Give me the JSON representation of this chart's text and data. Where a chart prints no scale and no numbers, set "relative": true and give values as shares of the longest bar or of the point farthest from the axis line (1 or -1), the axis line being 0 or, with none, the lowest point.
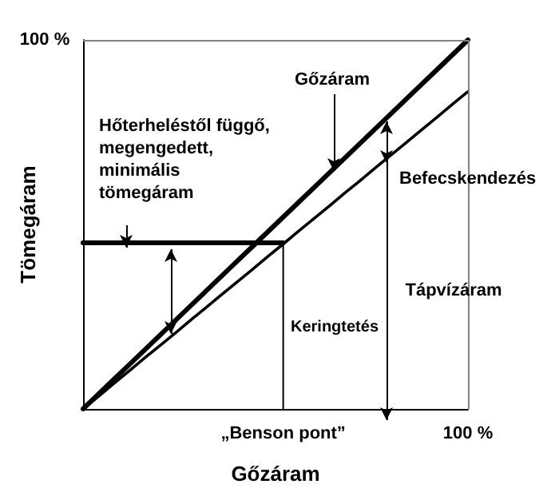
{
  "chart_data": {
    "type": "line",
    "xlabel": "Gőzáram",
    "ylabel": "Tömegáram",
    "relative": true,
    "marker": "none",
    "line_style": "solid",
    "categories": [
      null,
      null,
      null,
      null,
      null,
      null,
      null,
      null,
      null,
      null,
      null,
      null,
      null,
      "„Benson pont”",
      null,
      null,
      null,
      null,
      null,
      null,
      null,
      null,
      null,
      null,
      null,
      "100 %"
    ],
    "series": [
      {
        "color": "#000000",
        "values": [
          0,
          0.04,
          0.08,
          0.12,
          0.16,
          0.2,
          0.24,
          0.28,
          0.32,
          0.36,
          0.4,
          0.44,
          0.48,
          0.52,
          0.56,
          0.6,
          0.64,
          0.68,
          0.72,
          0.76,
          0.8,
          0.84,
          0.88,
          0.92,
          0.96,
          1
        ]
      },
      {
        "color": "#000000",
        "values": [
          0,
          0.034,
          0.069,
          0.103,
          0.138,
          0.172,
          0.206,
          0.241,
          0.275,
          0.31,
          0.344,
          0.378,
          0.413,
          0.447,
          0.482,
          0.516,
          0.55,
          0.585,
          0.619,
          0.654,
          0.688,
          0.722,
          0.757,
          0.791,
          0.826,
          0.86
        ]
      },
      {
        "color": "#000000",
        "values": [
          0.45,
          0.45,
          0.45,
          0.45,
          0.45,
          0.45,
          0.45,
          0.45,
          0.45,
          0.45,
          0.45,
          0.45,
          0.45,
          0.45,
          null,
          null,
          null,
          null,
          null,
          null,
          null,
          null,
          null,
          null,
          null,
          null
        ]
      },
      {
        "color": "#000000",
        "x": [
          "„Benson pont”",
          "„Benson pont”"
        ],
        "values": [
          0,
          0.45
        ]
      }
    ],
    "ref_lines": [
      {
        "axis": "y",
        "value": 1,
        "color": "#808080"
      },
      {
        "axis": "x",
        "value": "100 %",
        "color": "#808080"
      }
    ],
    "annotations": [
      "100 %",
      "Hőterheléstől függő,\nmegengedett,\nminimális\ntömegáram",
      "Gőzáram",
      "Befecskendezés",
      "Keringtetés",
      "Tápvízáram"
    ]
  }
}
